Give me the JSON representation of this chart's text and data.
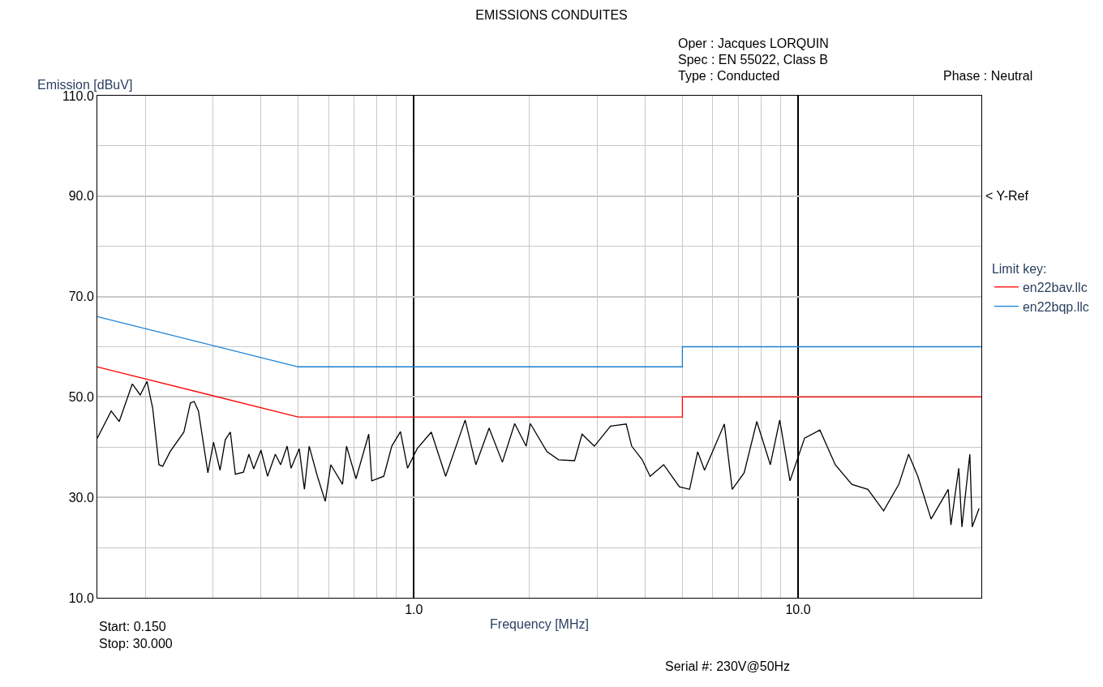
{
  "chart_data": {
    "type": "line",
    "title": "EMISSIONS CONDUITES",
    "xlabel": "Frequency [MHz]",
    "ylabel": "Emission [dBuV]",
    "legend_title": "Limit key:",
    "log": "x",
    "grid": true,
    "legend": "right",
    "marker": "none",
    "line_style": "solid",
    "xlim": [
      0.15,
      30
    ],
    "ylim": [
      10,
      110
    ],
    "xticks": [
      {
        "value": 0.2,
        "label": null
      },
      {
        "value": 0.3,
        "label": null
      },
      {
        "value": 0.4,
        "label": null
      },
      {
        "value": 0.5,
        "label": null
      },
      {
        "value": 0.6,
        "label": null
      },
      {
        "value": 0.7,
        "label": null
      },
      {
        "value": 0.8,
        "label": null
      },
      {
        "value": 0.9,
        "label": null
      },
      {
        "value": 1,
        "label": "1.0"
      },
      {
        "value": 2,
        "label": null
      },
      {
        "value": 3,
        "label": null
      },
      {
        "value": 4,
        "label": null
      },
      {
        "value": 5,
        "label": null
      },
      {
        "value": 6,
        "label": null
      },
      {
        "value": 7,
        "label": null
      },
      {
        "value": 8,
        "label": null
      },
      {
        "value": 9,
        "label": null
      },
      {
        "value": 10,
        "label": "10.0"
      },
      {
        "value": 20,
        "label": null
      },
      {
        "value": 30,
        "label": null
      }
    ],
    "yticks": [
      {
        "value": 10,
        "label": "10.0"
      },
      {
        "value": 20,
        "label": null
      },
      {
        "value": 30,
        "label": "30.0"
      },
      {
        "value": 40,
        "label": null
      },
      {
        "value": 50,
        "label": "50.0"
      },
      {
        "value": 60,
        "label": null
      },
      {
        "value": 70,
        "label": "70.0"
      },
      {
        "value": 80,
        "label": null
      },
      {
        "value": 90,
        "label": "90.0"
      },
      {
        "value": 100,
        "label": null
      },
      {
        "value": 110,
        "label": "110.0"
      }
    ],
    "series": [
      {
        "color": "#000000",
        "x": [
          0.15,
          0.163,
          0.171,
          0.185,
          0.194,
          0.202,
          0.209,
          0.217,
          0.222,
          0.232,
          0.252,
          0.262,
          0.268,
          0.275,
          0.291,
          0.301,
          0.313,
          0.323,
          0.333,
          0.343,
          0.36,
          0.372,
          0.383,
          0.4,
          0.416,
          0.436,
          0.45,
          0.468,
          0.479,
          0.503,
          0.519,
          0.534,
          0.561,
          0.588,
          0.608,
          0.652,
          0.668,
          0.707,
          0.763,
          0.777,
          0.835,
          0.876,
          0.923,
          0.963,
          1.02,
          1.11,
          1.21,
          1.36,
          1.45,
          1.57,
          1.7,
          1.83,
          1.96,
          2.01,
          2.22,
          2.38,
          2.62,
          2.74,
          2.95,
          3.25,
          3.57,
          3.69,
          3.93,
          4.12,
          4.47,
          4.91,
          5.22,
          5.48,
          5.71,
          6.43,
          6.74,
          7.24,
          7.81,
          8.47,
          8.96,
          9.53,
          10.4,
          11.4,
          12.5,
          13.8,
          15.2,
          16.7,
          18.3,
          19.4,
          20.5,
          22.2,
          24.6,
          25.0,
          26.2,
          26.7,
          28.0,
          28.4,
          29.6
        ],
        "values": [
          41.8,
          47.2,
          45.1,
          52.6,
          50.4,
          53.1,
          47.8,
          36.5,
          36.2,
          39.1,
          43.0,
          48.8,
          49.1,
          47.2,
          34.9,
          41.0,
          35.4,
          41.5,
          43.0,
          34.6,
          35.0,
          38.6,
          35.7,
          39.4,
          34.2,
          38.6,
          36.5,
          40.2,
          35.8,
          39.7,
          31.6,
          40.2,
          34.2,
          29.2,
          36.5,
          32.6,
          40.2,
          33.7,
          42.6,
          33.3,
          34.2,
          40.2,
          43.1,
          35.8,
          39.7,
          43.0,
          34.2,
          45.4,
          36.5,
          43.8,
          37.0,
          44.7,
          40.2,
          44.7,
          39.1,
          37.5,
          37.3,
          42.6,
          40.2,
          44.2,
          44.6,
          40.2,
          37.5,
          34.2,
          36.5,
          32.1,
          31.6,
          39.1,
          35.4,
          44.6,
          31.6,
          34.9,
          45.1,
          36.5,
          45.4,
          33.3,
          41.8,
          43.4,
          36.5,
          32.6,
          31.6,
          27.3,
          32.6,
          38.6,
          34.2,
          25.7,
          31.6,
          24.5,
          35.8,
          24.1,
          38.6,
          24.1,
          27.8
        ]
      },
      {
        "name": "en22bav.llc",
        "color": "#ff0000",
        "x": [
          0.15,
          0.5,
          5,
          5,
          30
        ],
        "values": [
          56,
          46,
          46,
          50,
          50
        ]
      },
      {
        "name": "en22bqp.llc",
        "color": "#1a7fd4",
        "x": [
          0.15,
          0.5,
          5,
          5,
          30
        ],
        "values": [
          66,
          56,
          56,
          60,
          60
        ]
      }
    ],
    "annotations": [
      "< Y-Ref",
      "Oper : Jacques LORQUIN",
      "Spec : EN 55022, Class B",
      "Type : Conducted",
      "Phase : Neutral",
      "Start: 0.150",
      "Stop: 30.000",
      "Serial #: 230V@50Hz"
    ]
  }
}
